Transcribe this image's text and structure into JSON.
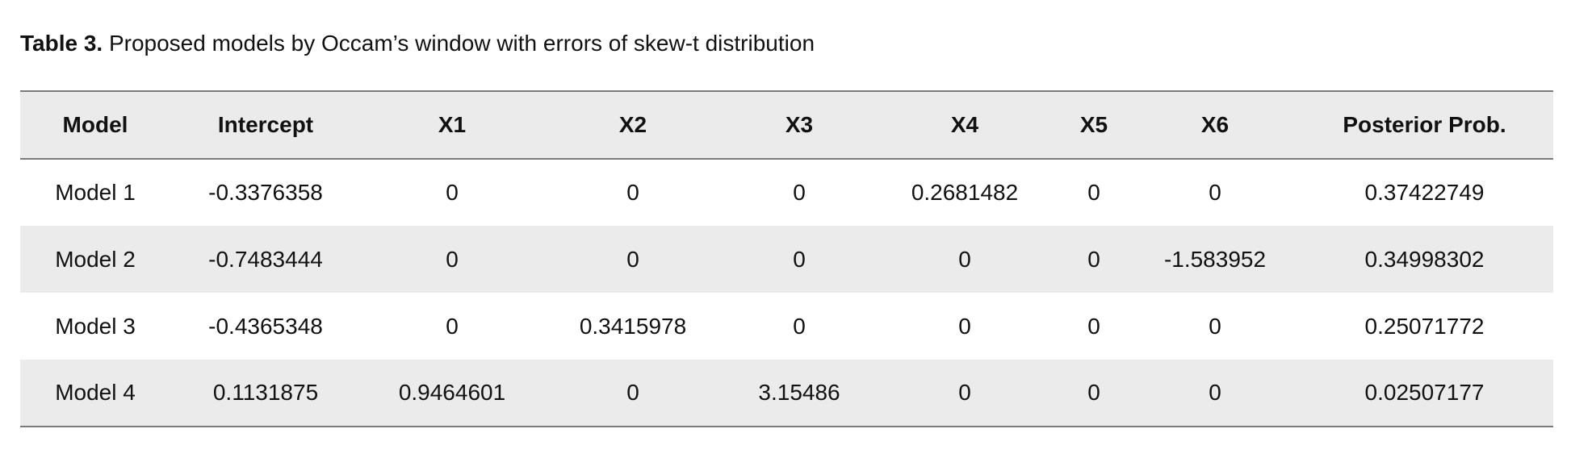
{
  "title": {
    "label": "Table 3.",
    "text": "Proposed models by Occam’s window with errors of skew-t distribution"
  },
  "table": {
    "header": [
      "Model",
      "Intercept",
      "X1",
      "X2",
      "X3",
      "X4",
      "X5",
      "X6",
      "Posterior Prob."
    ],
    "rows": [
      [
        "Model 1",
        "-0.3376358",
        "0",
        "0",
        "0",
        "0.2681482",
        "0",
        "0",
        "0.37422749"
      ],
      [
        "Model 2",
        "-0.7483444",
        "0",
        "0",
        "0",
        "0",
        "0",
        "-1.583952",
        "0.34998302"
      ],
      [
        "Model 3",
        "-0.4365348",
        "0",
        "0.3415978",
        "0",
        "0",
        "0",
        "0",
        "0.25071772"
      ],
      [
        "Model 4",
        "0.1131875",
        "0.9464601",
        "0",
        "3.15486",
        "0",
        "0",
        "0",
        "0.02507177"
      ]
    ]
  }
}
